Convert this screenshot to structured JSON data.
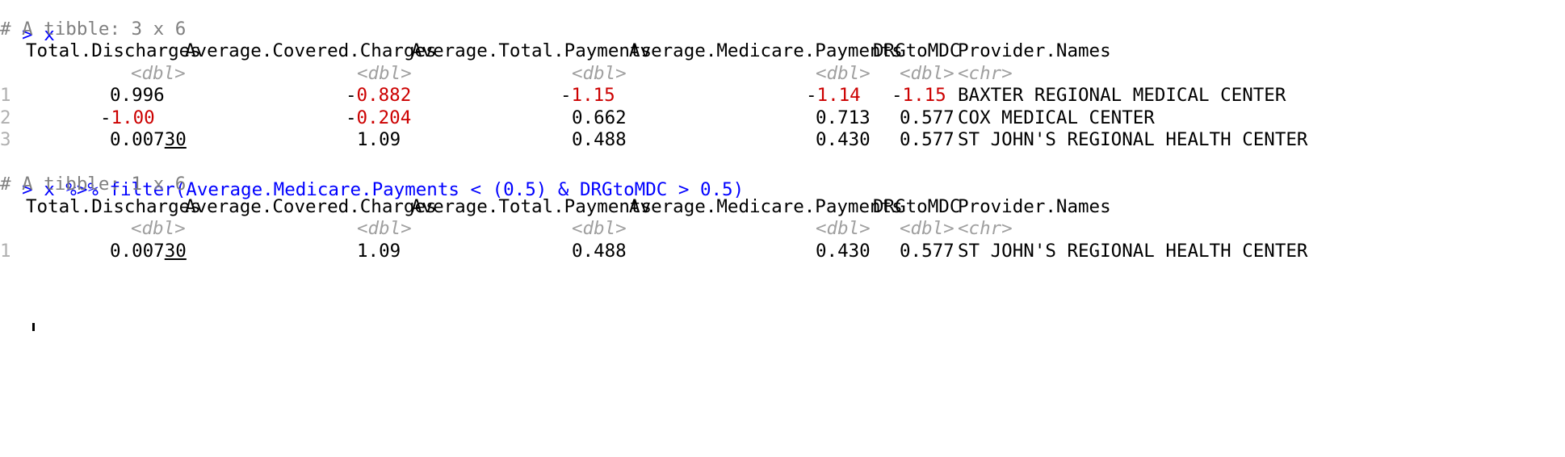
{
  "console": {
    "prompt": "> ",
    "cmd1": "x",
    "comment1": "# A tibble: 3 x 6",
    "cmd2": "x %>% filter(Average.Medicare.Payments < (0.5) & DRGtoMDC > 0.5)",
    "comment2": "# A tibble: 1 x 6",
    "colors": {
      "prompt": "#0000ff",
      "comment": "#808080",
      "negative": "#cc0000",
      "type": "#a0a0a0"
    }
  },
  "columns": [
    "Total.Discharges",
    "Average.Covered.Charges",
    "Average.Total.Payments",
    "Average.Medicare.Payments",
    "DRGtoMDC",
    "Provider.Names"
  ],
  "types": [
    "<dbl>",
    "<dbl>",
    "<dbl>",
    "<dbl>",
    "<dbl>",
    "<chr>"
  ],
  "table1": [
    {
      "n": "1",
      "c1a": "0.996",
      "c1b": "",
      "c2s": "",
      "c2": "-0.882",
      "c3s": "",
      "c3": "-1.15",
      "c4s": "",
      "c4": "-1.14",
      "c5s": "",
      "c5": "-1.15",
      "c6": "BAXTER REGIONAL MEDICAL CENTER"
    },
    {
      "n": "2",
      "c1": "-1.00",
      "c2": "-0.204",
      "c3": "0.662",
      "c4": "0.713",
      "c5": "0.577",
      "c6": "COX MEDICAL CENTER"
    },
    {
      "n": "3",
      "c1a": "0.007",
      "c1b": "30",
      "c2": "1.09",
      "c3": "0.488",
      "c4": "0.430",
      "c5": "0.577",
      "c6": "ST JOHN'S REGIONAL HEALTH CENTER"
    }
  ],
  "table2": [
    {
      "n": "1",
      "c1a": "0.007",
      "c1b": "30",
      "c2": "1.09",
      "c3": "0.488",
      "c4": "0.430",
      "c5": "0.577",
      "c6": "ST JOHN'S REGIONAL HEALTH CENTER"
    }
  ]
}
